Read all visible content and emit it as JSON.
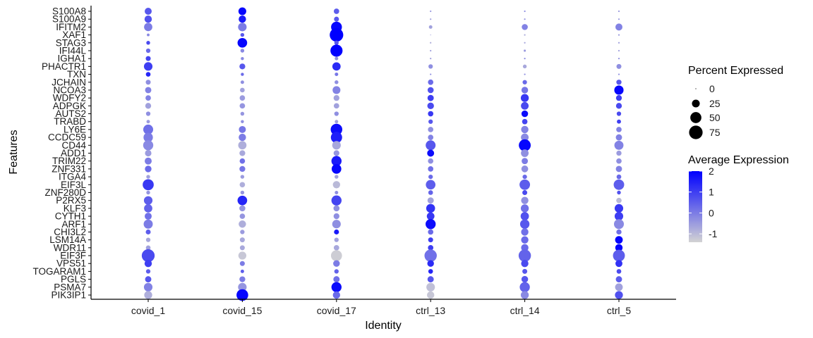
{
  "chart_data": {
    "type": "dotplot",
    "xlabel": "Identity",
    "ylabel": "Features",
    "categories": [
      "covid_1",
      "covid_15",
      "covid_17",
      "ctrl_13",
      "ctrl_14",
      "ctrl_5"
    ],
    "features": [
      "S100A8",
      "S100A9",
      "IFITM2",
      "XAF1",
      "STAG3",
      "IFI44L",
      "IGHA1",
      "PHACTR1",
      "TXN",
      "JCHAIN",
      "NCOA3",
      "WDFY2",
      "ADPGK",
      "AUTS2",
      "TRABD",
      "LY6E",
      "CCDC59",
      "CD44",
      "ADD1",
      "TRIM22",
      "ZNF331",
      "ITGA4",
      "EIF3L",
      "ZNF280D",
      "P2RX5",
      "KLF3",
      "CYTH1",
      "ARF1",
      "CHI3L2",
      "LSM14A",
      "WDR11",
      "EIF3F",
      "VPS51",
      "TOGARAM1",
      "PGLS",
      "PSMA7",
      "PIK3IP1"
    ],
    "percent_expressed": [
      [
        20,
        25,
        12,
        1,
        1,
        1
      ],
      [
        22,
        22,
        10,
        1,
        1,
        1
      ],
      [
        28,
        30,
        48,
        5,
        15,
        20
      ],
      [
        3,
        6,
        75,
        0,
        1,
        1
      ],
      [
        6,
        38,
        8,
        1,
        1,
        1
      ],
      [
        8,
        6,
        60,
        1,
        2,
        1
      ],
      [
        10,
        4,
        5,
        1,
        1,
        1
      ],
      [
        30,
        14,
        28,
        8,
        6,
        10
      ],
      [
        9,
        4,
        5,
        1,
        1,
        1
      ],
      [
        10,
        5,
        6,
        12,
        8,
        11
      ],
      [
        16,
        9,
        25,
        15,
        18,
        35
      ],
      [
        12,
        12,
        14,
        16,
        26,
        14
      ],
      [
        14,
        12,
        12,
        18,
        24,
        14
      ],
      [
        8,
        6,
        8,
        12,
        18,
        8
      ],
      [
        5,
        4,
        5,
        8,
        12,
        7
      ],
      [
        40,
        20,
        55,
        12,
        22,
        12
      ],
      [
        36,
        22,
        52,
        12,
        24,
        16
      ],
      [
        42,
        28,
        30,
        40,
        58,
        34
      ],
      [
        17,
        14,
        14,
        20,
        24,
        11
      ],
      [
        20,
        12,
        42,
        12,
        16,
        12
      ],
      [
        18,
        14,
        38,
        12,
        19,
        16
      ],
      [
        6,
        6,
        6,
        8,
        8,
        9
      ],
      [
        50,
        12,
        22,
        38,
        45,
        45
      ],
      [
        6,
        6,
        5,
        9,
        10,
        6
      ],
      [
        30,
        38,
        42,
        16,
        22,
        12
      ],
      [
        28,
        15,
        15,
        32,
        26,
        30
      ],
      [
        20,
        12,
        14,
        24,
        28,
        30
      ],
      [
        34,
        22,
        30,
        42,
        36,
        40
      ],
      [
        10,
        8,
        10,
        12,
        22,
        11
      ],
      [
        8,
        10,
        8,
        10,
        22,
        24
      ],
      [
        9,
        10,
        12,
        12,
        22,
        22
      ],
      [
        68,
        26,
        50,
        62,
        62,
        58
      ],
      [
        22,
        10,
        18,
        18,
        22,
        20
      ],
      [
        8,
        5,
        8,
        9,
        10,
        9
      ],
      [
        16,
        14,
        16,
        16,
        18,
        16
      ],
      [
        30,
        30,
        42,
        30,
        42,
        24
      ],
      [
        26,
        56,
        22,
        22,
        26,
        26
      ]
    ],
    "avg_expression": [
      [
        0.6,
        1.9,
        0.5,
        -0.5,
        -0.3,
        -0.5
      ],
      [
        0.7,
        1.6,
        0.6,
        -0.6,
        -0.4,
        -0.5
      ],
      [
        0.0,
        0.0,
        1.9,
        -0.6,
        -0.1,
        -0.1
      ],
      [
        -0.2,
        0.6,
        2.0,
        -0.6,
        -0.8,
        -0.5
      ],
      [
        0.8,
        1.9,
        0.6,
        -0.8,
        -0.7,
        -0.6
      ],
      [
        0.3,
        -0.2,
        2.0,
        -0.6,
        -0.5,
        -0.6
      ],
      [
        0.9,
        -0.2,
        -0.3,
        -0.6,
        -0.3,
        -0.4
      ],
      [
        1.0,
        0.6,
        1.3,
        -0.3,
        -0.7,
        -0.3
      ],
      [
        1.4,
        0.3,
        0.1,
        -0.3,
        -0.3,
        -0.3
      ],
      [
        -0.3,
        -0.3,
        -0.3,
        0.3,
        0.3,
        0.6
      ],
      [
        -0.1,
        -0.6,
        -0.1,
        0.7,
        0.1,
        1.9
      ],
      [
        -0.1,
        -0.5,
        -0.6,
        1.0,
        1.1,
        1.0
      ],
      [
        -0.6,
        -0.4,
        -0.6,
        0.8,
        0.8,
        0.8
      ],
      [
        -0.3,
        -0.4,
        -0.3,
        1.1,
        1.8,
        0.8
      ],
      [
        -0.5,
        -0.3,
        -0.6,
        0.6,
        0.9,
        1.0
      ],
      [
        0.2,
        0.1,
        1.8,
        -0.3,
        -0.1,
        -0.1
      ],
      [
        0.0,
        0.0,
        1.5,
        -0.1,
        -0.2,
        -0.1
      ],
      [
        -0.2,
        -0.8,
        -0.7,
        0.6,
        1.9,
        -0.1
      ],
      [
        -0.5,
        -0.7,
        -0.4,
        1.8,
        -0.3,
        -0.5
      ],
      [
        0.0,
        0.2,
        1.6,
        -0.3,
        0.0,
        -0.3
      ],
      [
        0.3,
        0.1,
        1.9,
        0.2,
        -0.3,
        -0.1
      ],
      [
        -0.6,
        -0.5,
        -0.6,
        0.3,
        0.3,
        0.3
      ],
      [
        1.1,
        -0.8,
        -1.0,
        0.5,
        0.5,
        0.5
      ],
      [
        -0.4,
        -0.4,
        -0.3,
        0.4,
        0.8,
        0.7
      ],
      [
        0.5,
        1.4,
        0.9,
        -0.6,
        -0.3,
        -1.0
      ],
      [
        0.4,
        -0.4,
        -0.3,
        1.2,
        0.2,
        1.1
      ],
      [
        0.2,
        -0.4,
        -0.3,
        1.1,
        0.7,
        1.0
      ],
      [
        0.0,
        -0.8,
        -0.3,
        1.8,
        0.6,
        -0.2
      ],
      [
        0.5,
        -0.5,
        1.6,
        0.3,
        0.2,
        0.2
      ],
      [
        -0.7,
        -0.7,
        -0.6,
        1.0,
        0.3,
        1.9
      ],
      [
        -0.6,
        -0.7,
        -0.7,
        1.0,
        0.3,
        1.9
      ],
      [
        0.8,
        -1.2,
        -1.3,
        0.2,
        0.4,
        0.5
      ],
      [
        1.0,
        0.0,
        0.0,
        1.3,
        0.8,
        1.2
      ],
      [
        0.5,
        0.5,
        0.4,
        1.4,
        0.6,
        0.8
      ],
      [
        0.6,
        0.0,
        0.2,
        0.6,
        0.6,
        0.5
      ],
      [
        -0.1,
        -0.4,
        1.8,
        -1.1,
        0.4,
        -0.6
      ],
      [
        -0.8,
        1.9,
        0.3,
        -1.2,
        -0.2,
        0.7
      ]
    ],
    "legend_size": {
      "title": "Percent Expressed",
      "breaks": [
        0,
        25,
        50,
        75
      ],
      "labels": [
        "0",
        "25",
        "50",
        "75"
      ]
    },
    "legend_color": {
      "title": "Average Expression",
      "breaks": [
        2,
        1,
        0,
        -1
      ],
      "labels": [
        "2",
        "1",
        "0",
        "-1"
      ],
      "range": [
        -1.4,
        2.0
      ],
      "low_color": "#d3d3d3",
      "high_color": "#0000ff"
    },
    "grid": false
  }
}
